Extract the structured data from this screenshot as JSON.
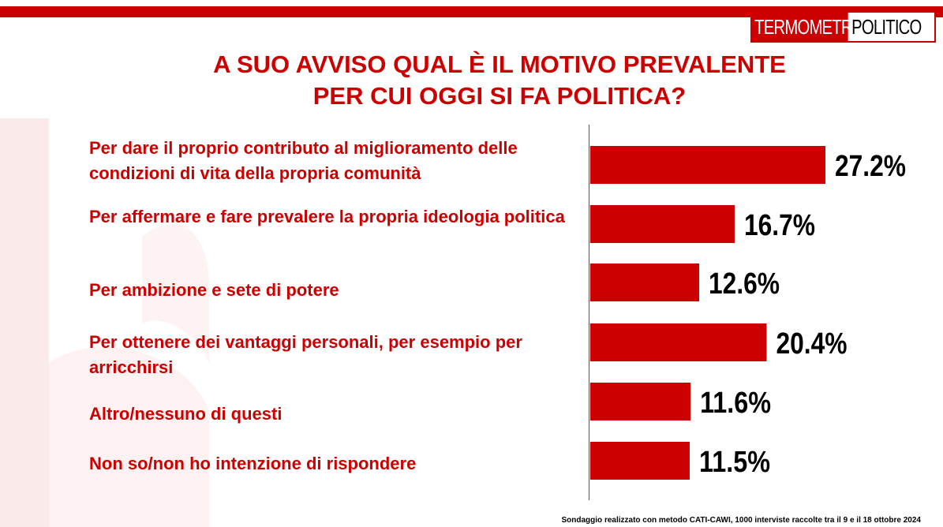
{
  "header": {
    "logo_left": "TERMOMETRO",
    "logo_right": "POLITICO"
  },
  "colors": {
    "accent": "#cc0000",
    "bar": "#cc0000",
    "value_text": "#000000"
  },
  "chart_data": {
    "type": "bar",
    "orientation": "horizontal",
    "title_lines": [
      "A SUO AVVISO QUAL È IL MOTIVO PREVALENTE",
      "PER CUI OGGI SI FA POLITICA?"
    ],
    "categories": [
      "Per dare il proprio contributo al miglioramento delle condizioni di vita della propria comunità",
      "Per affermare e fare prevalere la propria ideologia politica",
      "Per ambizione e sete di potere",
      "Per ottenere dei vantaggi personali, per esempio per arricchirsi",
      "Altro/nessuno di questi",
      "Non so/non ho intenzione di rispondere"
    ],
    "values": [
      27.2,
      16.7,
      12.6,
      20.4,
      11.6,
      11.5
    ],
    "value_labels": [
      "27.2%",
      "16.7%",
      "12.6%",
      "20.4%",
      "11.6%",
      "11.5%"
    ],
    "unit": "%",
    "grid": false,
    "legend": "none"
  },
  "footer": {
    "note": "Sondaggio realizzato con metodo CATI-CAWI, 1000 interviste raccolte tra il 9 e il 18 ottobre 2024"
  }
}
